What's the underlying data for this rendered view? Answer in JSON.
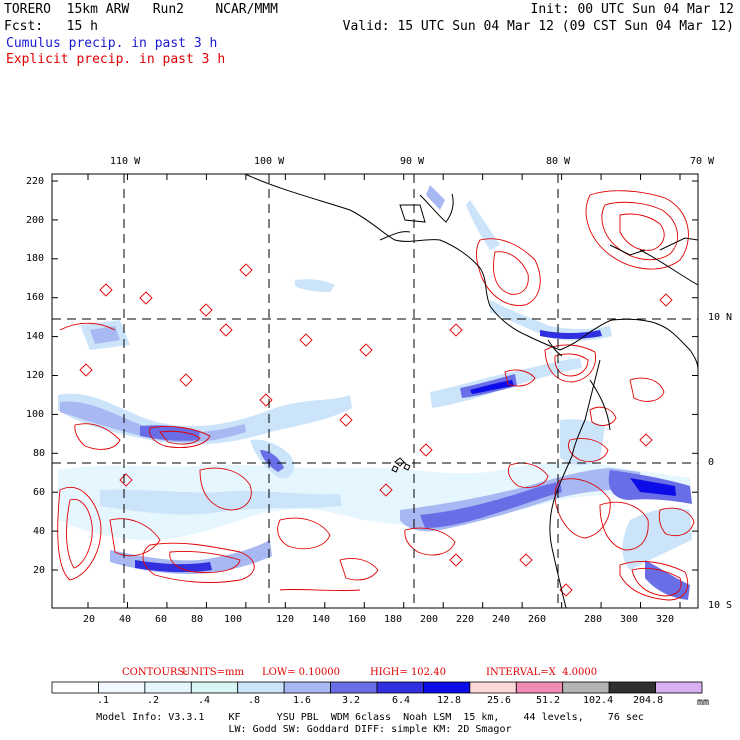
{
  "header": {
    "model": "TORERO  15km ARW   Run2    NCAR/MMM",
    "init": "Init: 00 UTC Sun 04 Mar 12",
    "fcst": "Fcst:   15 h",
    "valid": "Valid: 15 UTC Sun 04 Mar 12 (09 CST Sun 04 Mar 12)",
    "field1": "Cumulus precip. in past 3 h",
    "field2": "Explicit precip. in past 3 h"
  },
  "colors": {
    "cumulus_text": "#1a1ad0",
    "explicit_text": "#e00000",
    "contour": "#e00000",
    "gridline": "#000000",
    "coastline": "#000000"
  },
  "map": {
    "lon_labels": [
      "110 W",
      "100 W",
      "90 W",
      "80 W",
      "70 W"
    ],
    "lat_labels": [
      "10 N",
      "0",
      "10 S"
    ],
    "y_ticks": [
      "220",
      "200",
      "180",
      "160",
      "140",
      "120",
      "100",
      "80",
      "60",
      "40",
      "20"
    ],
    "x_ticks": [
      "20",
      "40",
      "60",
      "80",
      "100",
      "120",
      "140",
      "160",
      "180",
      "200",
      "220",
      "240",
      "260",
      "280",
      "300",
      "320"
    ],
    "grid_y_ticks": [
      220,
      200,
      180,
      160,
      140,
      120,
      100,
      80,
      60,
      40,
      20
    ],
    "grid_x_ticks": [
      20,
      40,
      60,
      80,
      100,
      120,
      140,
      160,
      180,
      200,
      220,
      240,
      260,
      280,
      300,
      320
    ]
  },
  "contour_info": {
    "label": "CONTOURS:",
    "units": "UNITS=mm",
    "low": "LOW= 0.10000",
    "high": "HIGH= 102.40",
    "interval": "INTERVAL=X  4.0000"
  },
  "colorbar": {
    "labels": [
      ".1",
      ".2",
      ".4",
      ".8",
      "1.6",
      "3.2",
      "6.4",
      "12.8",
      "25.6",
      "51.2",
      "102.4",
      "204.8"
    ],
    "unit": "mm",
    "colors": [
      "#ffffff",
      "#f2f8ff",
      "#e6f6ff",
      "#d8f6f4",
      "#cce4fa",
      "#a8b8f2",
      "#6a6ee6",
      "#3030e0",
      "#0c0ce8",
      "#fcd8d8",
      "#f08cb4",
      "#b4b4b4",
      "#303030",
      "#d8b0f4"
    ]
  },
  "footer": {
    "line1": "Model Info: V3.3.1    KF      YSU PBL  WDM 6class  Noah LSM  15 km,    44 levels,    76 sec",
    "line2": "LW: Godd SW: Goddard DIFF: simple KM: 2D Smagor"
  }
}
